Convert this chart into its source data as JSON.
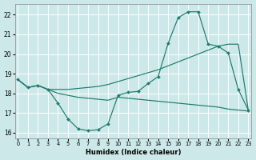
{
  "xlabel": "Humidex (Indice chaleur)",
  "background_color": "#cce8e8",
  "grid_color": "#ffffff",
  "line_color": "#1e7b6e",
  "xlim": [
    -0.3,
    23.3
  ],
  "ylim": [
    15.7,
    22.55
  ],
  "yticks": [
    16,
    17,
    18,
    19,
    20,
    21,
    22
  ],
  "xticks": [
    0,
    1,
    2,
    3,
    4,
    5,
    6,
    7,
    8,
    9,
    10,
    11,
    12,
    13,
    14,
    15,
    16,
    17,
    18,
    19,
    20,
    21,
    22,
    23
  ],
  "curve_main_x": [
    0,
    1,
    2,
    3,
    4,
    5,
    6,
    7,
    8,
    9,
    10,
    11,
    12,
    13,
    14,
    15,
    16,
    17,
    18,
    19,
    20,
    21,
    22,
    23
  ],
  "curve_main_y": [
    18.7,
    18.3,
    18.4,
    18.2,
    17.5,
    16.7,
    16.2,
    16.1,
    16.15,
    16.45,
    17.9,
    18.05,
    18.1,
    18.5,
    18.85,
    20.55,
    21.85,
    22.15,
    22.15,
    20.5,
    20.4,
    20.05,
    18.2,
    17.15
  ],
  "curve_upper_x": [
    0,
    1,
    2,
    3,
    4,
    5,
    6,
    7,
    8,
    9,
    10,
    11,
    12,
    13,
    14,
    15,
    16,
    17,
    18,
    19,
    20,
    21,
    22,
    23
  ],
  "curve_upper_y": [
    18.7,
    18.3,
    18.4,
    18.2,
    18.2,
    18.2,
    18.25,
    18.3,
    18.35,
    18.45,
    18.6,
    18.75,
    18.9,
    19.05,
    19.2,
    19.4,
    19.6,
    19.8,
    20.0,
    20.2,
    20.4,
    20.5,
    20.5,
    17.15
  ],
  "curve_lower_x": [
    0,
    1,
    2,
    3,
    4,
    5,
    6,
    7,
    8,
    9,
    10,
    11,
    12,
    13,
    14,
    15,
    16,
    17,
    18,
    19,
    20,
    21,
    22,
    23
  ],
  "curve_lower_y": [
    18.7,
    18.3,
    18.4,
    18.2,
    18.0,
    17.9,
    17.8,
    17.75,
    17.7,
    17.65,
    17.8,
    17.75,
    17.7,
    17.65,
    17.6,
    17.55,
    17.5,
    17.45,
    17.4,
    17.35,
    17.3,
    17.2,
    17.15,
    17.1
  ]
}
